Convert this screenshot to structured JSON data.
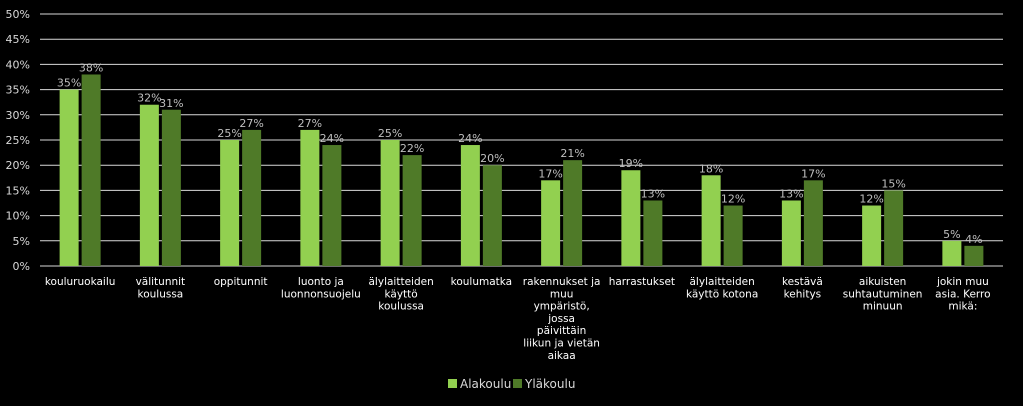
{
  "chart_data": {
    "type": "bar",
    "title": "",
    "xlabel": "",
    "ylabel": "",
    "ylim": [
      0,
      50
    ],
    "yticks": [
      "0%",
      "5%",
      "10%",
      "15%",
      "20%",
      "25%",
      "30%",
      "35%",
      "40%",
      "45%",
      "50%"
    ],
    "grid": true,
    "legend_position": "bottom",
    "categories": [
      [
        "kouluruokailu"
      ],
      [
        "välitunnit",
        "koulussa"
      ],
      [
        "oppitunnit"
      ],
      [
        "luonto ja",
        "luonnonsuojelu"
      ],
      [
        "älylaitteiden",
        "käyttö",
        "koulussa"
      ],
      [
        "koulumatka"
      ],
      [
        "rakennukset ja",
        "muu",
        "ympäristö,",
        "jossa",
        "päivittäin",
        "liikun ja vietän",
        "aikaa"
      ],
      [
        "harrastukset"
      ],
      [
        "älylaitteiden",
        "käyttö kotona"
      ],
      [
        "kestävä",
        "kehitys"
      ],
      [
        "aikuisten",
        "suhtautuminen",
        "minuun"
      ],
      [
        "jokin muu",
        "asia. Kerro",
        "mikä:"
      ]
    ],
    "series": [
      {
        "name": "Alakoulu",
        "color": "#92d050",
        "values": [
          35,
          32,
          25,
          27,
          25,
          24,
          17,
          19,
          18,
          13,
          12,
          5
        ],
        "labels": [
          "35%",
          "32%",
          "25%",
          "27%",
          "25%",
          "24%",
          "17%",
          "19%",
          "18%",
          "13%",
          "12%",
          "5%"
        ]
      },
      {
        "name": "Yläkoulu",
        "color": "#4f7a28",
        "values": [
          38,
          31,
          27,
          24,
          22,
          20,
          21,
          13,
          12,
          17,
          15,
          4
        ],
        "labels": [
          "38%",
          "31%",
          "27%",
          "24%",
          "22%",
          "20%",
          "21%",
          "13%",
          "12%",
          "17%",
          "15%",
          "4%"
        ]
      }
    ]
  }
}
